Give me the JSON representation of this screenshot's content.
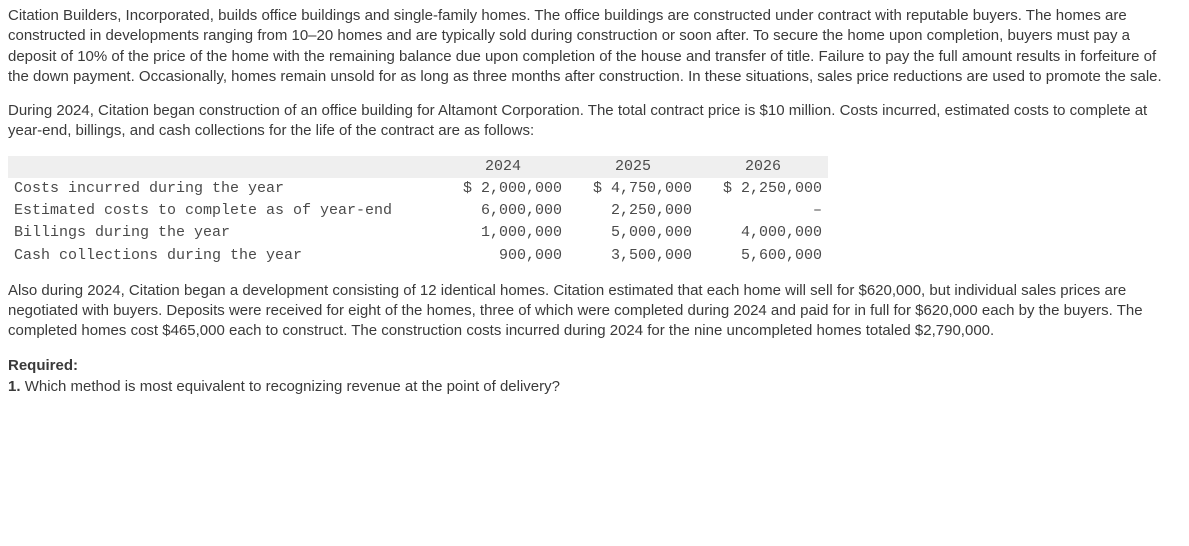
{
  "paragraphs": {
    "p1": "Citation Builders, Incorporated, builds office buildings and single-family homes. The office buildings are constructed under contract with reputable buyers. The homes are constructed in developments ranging from 10–20 homes and are typically sold during construction or soon after. To secure the home upon completion, buyers must pay a deposit of 10% of the price of the home with the remaining balance due upon completion of the house and transfer of title. Failure to pay the full amount results in forfeiture of the down payment. Occasionally, homes remain unsold for as long as three months after construction. In these situations, sales price reductions are used to promote the sale.",
    "p2": "During 2024, Citation began construction of an office building for Altamont Corporation. The total contract price is $10 million. Costs incurred, estimated costs to complete at year-end, billings, and cash collections for the life of the contract are as follows:",
    "p3": "Also during 2024, Citation began a development consisting of 12 identical homes. Citation estimated that each home will sell for $620,000, but individual sales prices are negotiated with buyers. Deposits were received for eight of the homes, three of which were completed during 2024 and paid for in full for $620,000 each by the buyers. The completed homes cost $465,000 each to construct. The construction costs incurred during 2024 for the nine uncompleted homes totaled $2,790,000."
  },
  "table": {
    "headers": {
      "c1": "2024",
      "c2": "2025",
      "c3": "2026"
    },
    "rows": [
      {
        "label": "Costs incurred during the year",
        "c1": "$ 2,000,000",
        "c2": "$ 4,750,000",
        "c3": "$ 2,250,000"
      },
      {
        "label": "Estimated costs to complete as of year-end",
        "c1": "6,000,000",
        "c2": "2,250,000",
        "c3": "–"
      },
      {
        "label": "Billings during the year",
        "c1": "1,000,000",
        "c2": "5,000,000",
        "c3": "4,000,000"
      },
      {
        "label": "Cash collections during the year",
        "c1": "900,000",
        "c2": "3,500,000",
        "c3": "5,600,000"
      }
    ]
  },
  "required": {
    "heading": "Required:",
    "item1_num": "1.",
    "item1_text": "Which method is most equivalent to recognizing revenue at the point of delivery?"
  }
}
